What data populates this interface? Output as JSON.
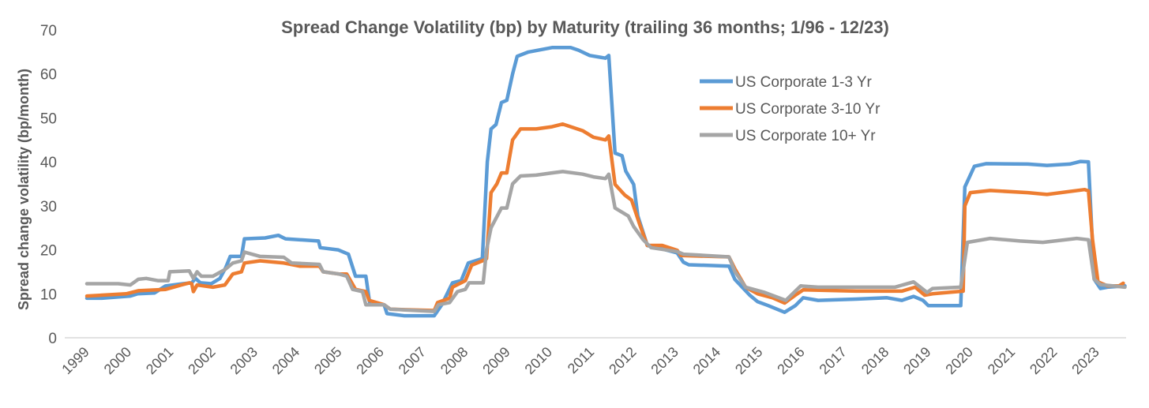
{
  "chart_data": {
    "type": "line",
    "title": "Spread Change Volatility (bp) by Maturity (trailing 36 months; 1/96 - 12/23)",
    "xlabel": "",
    "ylabel": "Spread change volatility (bp/month)",
    "ylim": [
      0,
      70
    ],
    "yticks": [
      "0",
      "10",
      "20",
      "30",
      "40",
      "50",
      "60",
      "70"
    ],
    "xlim": [
      1999,
      2024.05
    ],
    "xticks": [
      "1999",
      "2000",
      "2001",
      "2002",
      "2003",
      "2004",
      "2005",
      "2006",
      "2007",
      "2008",
      "2009",
      "2010",
      "2011",
      "2012",
      "2013",
      "2014",
      "2015",
      "2016",
      "2017",
      "2018",
      "2019",
      "2020",
      "2021",
      "2022",
      "2023"
    ],
    "grid": false,
    "legend_position": "top-right",
    "series": [
      {
        "name": "US Corporate 1-3 Yr",
        "color": "#5b9bd5",
        "points": [
          [
            1999.0,
            9
          ],
          [
            1999.36,
            9
          ],
          [
            2000.05,
            9.5
          ],
          [
            2000.22,
            10
          ],
          [
            2000.63,
            10.2
          ],
          [
            2000.9,
            11.8
          ],
          [
            2001.32,
            12.3
          ],
          [
            2001.53,
            12.5
          ],
          [
            2001.62,
            13.5
          ],
          [
            2001.74,
            12.5
          ],
          [
            2002.0,
            12.3
          ],
          [
            2002.21,
            13.5
          ],
          [
            2002.35,
            16
          ],
          [
            2002.46,
            18.5
          ],
          [
            2002.73,
            18.5
          ],
          [
            2002.8,
            22.5
          ],
          [
            2003.3,
            22.7
          ],
          [
            2003.62,
            23.3
          ],
          [
            2003.79,
            22.5
          ],
          [
            2004.59,
            22
          ],
          [
            2004.63,
            20.5
          ],
          [
            2005.06,
            20
          ],
          [
            2005.31,
            19
          ],
          [
            2005.48,
            14
          ],
          [
            2005.73,
            14
          ],
          [
            2005.83,
            7.5
          ],
          [
            2006.17,
            7.5
          ],
          [
            2006.24,
            5.5
          ],
          [
            2006.66,
            5
          ],
          [
            2007.38,
            5
          ],
          [
            2007.56,
            7.5
          ],
          [
            2007.82,
            12.5
          ],
          [
            2008.03,
            13
          ],
          [
            2008.2,
            17
          ],
          [
            2008.54,
            18
          ],
          [
            2008.66,
            40
          ],
          [
            2008.75,
            47.5
          ],
          [
            2008.87,
            48.5
          ],
          [
            2009.0,
            53.5
          ],
          [
            2009.13,
            54
          ],
          [
            2009.27,
            60
          ],
          [
            2009.38,
            64
          ],
          [
            2009.65,
            65
          ],
          [
            2010.22,
            66
          ],
          [
            2010.67,
            66
          ],
          [
            2010.86,
            65.4
          ],
          [
            2011.13,
            64.2
          ],
          [
            2011.51,
            63.6
          ],
          [
            2011.59,
            64.2
          ],
          [
            2011.74,
            42
          ],
          [
            2011.91,
            41.4
          ],
          [
            2012.0,
            37.9
          ],
          [
            2012.19,
            34.9
          ],
          [
            2012.29,
            27.7
          ],
          [
            2012.52,
            21
          ],
          [
            2012.88,
            20.2
          ],
          [
            2013.24,
            19.3
          ],
          [
            2013.39,
            17.2
          ],
          [
            2013.52,
            16.6
          ],
          [
            2014.49,
            16.3
          ],
          [
            2014.63,
            13.3
          ],
          [
            2014.99,
            9.7
          ],
          [
            2015.18,
            8.2
          ],
          [
            2015.44,
            7.3
          ],
          [
            2015.83,
            5.8
          ],
          [
            2016.09,
            7.3
          ],
          [
            2016.28,
            9.1
          ],
          [
            2016.64,
            8.5
          ],
          [
            2017.56,
            8.8
          ],
          [
            2018.3,
            9.1
          ],
          [
            2018.66,
            8.5
          ],
          [
            2018.94,
            9.4
          ],
          [
            2019.17,
            8.5
          ],
          [
            2019.3,
            7.3
          ],
          [
            2020.08,
            7.3
          ],
          [
            2020.18,
            34.3
          ],
          [
            2020.41,
            39
          ],
          [
            2020.69,
            39.6
          ],
          [
            2021.7,
            39.5
          ],
          [
            2022.16,
            39.2
          ],
          [
            2022.71,
            39.5
          ],
          [
            2022.97,
            40.1
          ],
          [
            2023.16,
            40
          ],
          [
            2023.3,
            13.3
          ],
          [
            2023.45,
            11.2
          ],
          [
            2023.62,
            11.5
          ],
          [
            2024.04,
            11.8
          ]
        ]
      },
      {
        "name": "US Corporate 3-10 Yr",
        "color": "#ed7d31",
        "points": [
          [
            1999.0,
            9.5
          ],
          [
            1999.95,
            10
          ],
          [
            2000.24,
            10.7
          ],
          [
            2000.9,
            11
          ],
          [
            2001.28,
            12
          ],
          [
            2001.47,
            12.5
          ],
          [
            2001.53,
            12.3
          ],
          [
            2001.57,
            10.5
          ],
          [
            2001.66,
            12
          ],
          [
            2002.04,
            11.5
          ],
          [
            2002.33,
            12
          ],
          [
            2002.52,
            14.5
          ],
          [
            2002.73,
            15
          ],
          [
            2002.8,
            17
          ],
          [
            2003.18,
            17.5
          ],
          [
            2003.75,
            17
          ],
          [
            2004.13,
            16.3
          ],
          [
            2004.61,
            16.3
          ],
          [
            2004.7,
            15
          ],
          [
            2005.08,
            14.5
          ],
          [
            2005.27,
            14.5
          ],
          [
            2005.48,
            11
          ],
          [
            2005.73,
            10.5
          ],
          [
            2005.81,
            8.5
          ],
          [
            2006.17,
            7.5
          ],
          [
            2006.32,
            6.5
          ],
          [
            2007.38,
            6.2
          ],
          [
            2007.46,
            8
          ],
          [
            2007.75,
            9
          ],
          [
            2007.82,
            11.5
          ],
          [
            2008.13,
            13
          ],
          [
            2008.28,
            16.5
          ],
          [
            2008.54,
            17.5
          ],
          [
            2008.64,
            18
          ],
          [
            2008.75,
            33
          ],
          [
            2008.89,
            35
          ],
          [
            2009.0,
            37.5
          ],
          [
            2009.13,
            37.5
          ],
          [
            2009.27,
            45
          ],
          [
            2009.46,
            47.5
          ],
          [
            2009.84,
            47.5
          ],
          [
            2010.22,
            48
          ],
          [
            2010.48,
            48.6
          ],
          [
            2010.96,
            47.1
          ],
          [
            2011.22,
            45.6
          ],
          [
            2011.51,
            45
          ],
          [
            2011.59,
            45.9
          ],
          [
            2011.74,
            34.9
          ],
          [
            2011.97,
            32.5
          ],
          [
            2012.14,
            31.3
          ],
          [
            2012.33,
            25.9
          ],
          [
            2012.52,
            21
          ],
          [
            2012.88,
            21
          ],
          [
            2013.24,
            19.9
          ],
          [
            2013.33,
            18.7
          ],
          [
            2014.49,
            18.4
          ],
          [
            2014.63,
            15.7
          ],
          [
            2014.89,
            11.5
          ],
          [
            2015.18,
            10
          ],
          [
            2015.54,
            9.1
          ],
          [
            2015.83,
            7.9
          ],
          [
            2016.09,
            9.7
          ],
          [
            2016.28,
            10.9
          ],
          [
            2017.56,
            10.6
          ],
          [
            2018.66,
            10.6
          ],
          [
            2018.98,
            11.5
          ],
          [
            2019.21,
            9.7
          ],
          [
            2019.4,
            10
          ],
          [
            2020.14,
            10.6
          ],
          [
            2020.18,
            30
          ],
          [
            2020.31,
            33
          ],
          [
            2020.79,
            33.5
          ],
          [
            2021.7,
            33
          ],
          [
            2022.16,
            32.6
          ],
          [
            2023.07,
            33.7
          ],
          [
            2023.16,
            33.4
          ],
          [
            2023.26,
            22.3
          ],
          [
            2023.39,
            12.7
          ],
          [
            2023.62,
            11.8
          ],
          [
            2023.9,
            11.8
          ],
          [
            2024.0,
            12.4
          ]
        ]
      },
      {
        "name": "US Corporate 10+ Yr",
        "color": "#a5a5a5",
        "points": [
          [
            1999.0,
            12.3
          ],
          [
            1999.76,
            12.3
          ],
          [
            2000.05,
            12
          ],
          [
            2000.24,
            13.3
          ],
          [
            2000.43,
            13.5
          ],
          [
            2000.71,
            13
          ],
          [
            2000.96,
            13
          ],
          [
            2001.0,
            15
          ],
          [
            2001.47,
            15.2
          ],
          [
            2001.57,
            13.5
          ],
          [
            2001.66,
            15
          ],
          [
            2001.76,
            14
          ],
          [
            2002.04,
            14
          ],
          [
            2002.33,
            15.5
          ],
          [
            2002.52,
            17
          ],
          [
            2002.73,
            17.5
          ],
          [
            2002.8,
            19.5
          ],
          [
            2003.18,
            18.5
          ],
          [
            2003.75,
            18.3
          ],
          [
            2003.94,
            17
          ],
          [
            2004.61,
            16.7
          ],
          [
            2004.7,
            15
          ],
          [
            2005.08,
            14.5
          ],
          [
            2005.27,
            14
          ],
          [
            2005.41,
            11
          ],
          [
            2005.65,
            10.5
          ],
          [
            2005.73,
            7.5
          ],
          [
            2006.17,
            7.5
          ],
          [
            2006.32,
            6.5
          ],
          [
            2007.38,
            6
          ],
          [
            2007.48,
            7.5
          ],
          [
            2007.75,
            8
          ],
          [
            2007.94,
            10.5
          ],
          [
            2008.13,
            11
          ],
          [
            2008.22,
            12.5
          ],
          [
            2008.56,
            12.5
          ],
          [
            2008.64,
            20
          ],
          [
            2008.75,
            25
          ],
          [
            2009.0,
            29.5
          ],
          [
            2009.13,
            29.5
          ],
          [
            2009.27,
            35
          ],
          [
            2009.46,
            36.8
          ],
          [
            2009.84,
            37
          ],
          [
            2010.22,
            37.5
          ],
          [
            2010.48,
            37.8
          ],
          [
            2010.96,
            37.2
          ],
          [
            2011.22,
            36.6
          ],
          [
            2011.51,
            36.2
          ],
          [
            2011.59,
            37.2
          ],
          [
            2011.74,
            29.5
          ],
          [
            2012.06,
            27.7
          ],
          [
            2012.19,
            25.3
          ],
          [
            2012.42,
            22.3
          ],
          [
            2012.61,
            20.5
          ],
          [
            2013.24,
            19.6
          ],
          [
            2013.39,
            19
          ],
          [
            2014.49,
            18.4
          ],
          [
            2014.63,
            15.1
          ],
          [
            2014.89,
            11.5
          ],
          [
            2015.35,
            10.3
          ],
          [
            2015.86,
            8.5
          ],
          [
            2016.22,
            11.8
          ],
          [
            2016.64,
            11.5
          ],
          [
            2018.49,
            11.5
          ],
          [
            2018.94,
            12.7
          ],
          [
            2019.27,
            10.3
          ],
          [
            2019.4,
            11.2
          ],
          [
            2020.08,
            11.5
          ],
          [
            2020.24,
            21.7
          ],
          [
            2020.79,
            22.6
          ],
          [
            2021.51,
            22
          ],
          [
            2022.06,
            21.7
          ],
          [
            2022.88,
            22.6
          ],
          [
            2023.16,
            22.3
          ],
          [
            2023.3,
            13.3
          ],
          [
            2023.45,
            12.1
          ],
          [
            2024.04,
            11.5
          ]
        ]
      }
    ]
  }
}
